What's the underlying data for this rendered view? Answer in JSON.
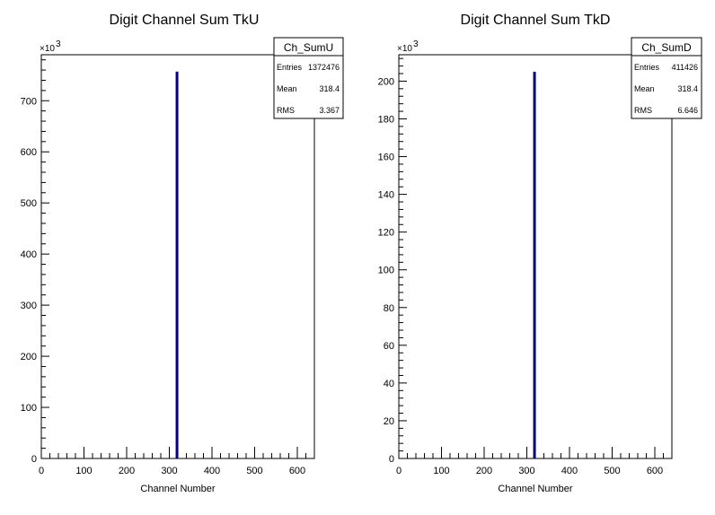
{
  "chart_data": [
    {
      "type": "bar",
      "title": "Digit Channel Sum TkU",
      "xlabel": "Channel Number",
      "ylabel": "",
      "xlim": [
        0,
        640
      ],
      "ylim": [
        0,
        790000
      ],
      "x_ticks": [
        0,
        100,
        200,
        300,
        400,
        500,
        600
      ],
      "y_ticks": [
        0,
        100,
        200,
        300,
        400,
        500,
        600,
        700
      ],
      "y_exponent_label": "×10",
      "y_exponent_power": "3",
      "y_scale_factor": 1000,
      "x": [
        318
      ],
      "values": [
        757000
      ],
      "bar_color": "#000080",
      "legend": "top-right",
      "stats": {
        "name": "Ch_SumU",
        "entries_label": "Entries",
        "entries": "1372476",
        "mean_label": "Mean",
        "mean": "318.4",
        "rms_label": "RMS",
        "rms": "3.367"
      }
    },
    {
      "type": "bar",
      "title": "Digit Channel Sum TkD",
      "xlabel": "Channel Number",
      "ylabel": "",
      "xlim": [
        0,
        640
      ],
      "ylim": [
        0,
        214000
      ],
      "x_ticks": [
        0,
        100,
        200,
        300,
        400,
        500,
        600
      ],
      "y_ticks": [
        0,
        20,
        40,
        60,
        80,
        100,
        120,
        140,
        160,
        180,
        200
      ],
      "y_exponent_label": "×10",
      "y_exponent_power": "3",
      "y_scale_factor": 1000,
      "x": [
        318
      ],
      "values": [
        205000
      ],
      "bar_color": "#000080",
      "legend": "top-right",
      "stats": {
        "name": "Ch_SumD",
        "entries_label": "Entries",
        "entries": "411426",
        "mean_label": "Mean",
        "mean": "318.4",
        "rms_label": "RMS",
        "rms": "6.646"
      }
    }
  ]
}
